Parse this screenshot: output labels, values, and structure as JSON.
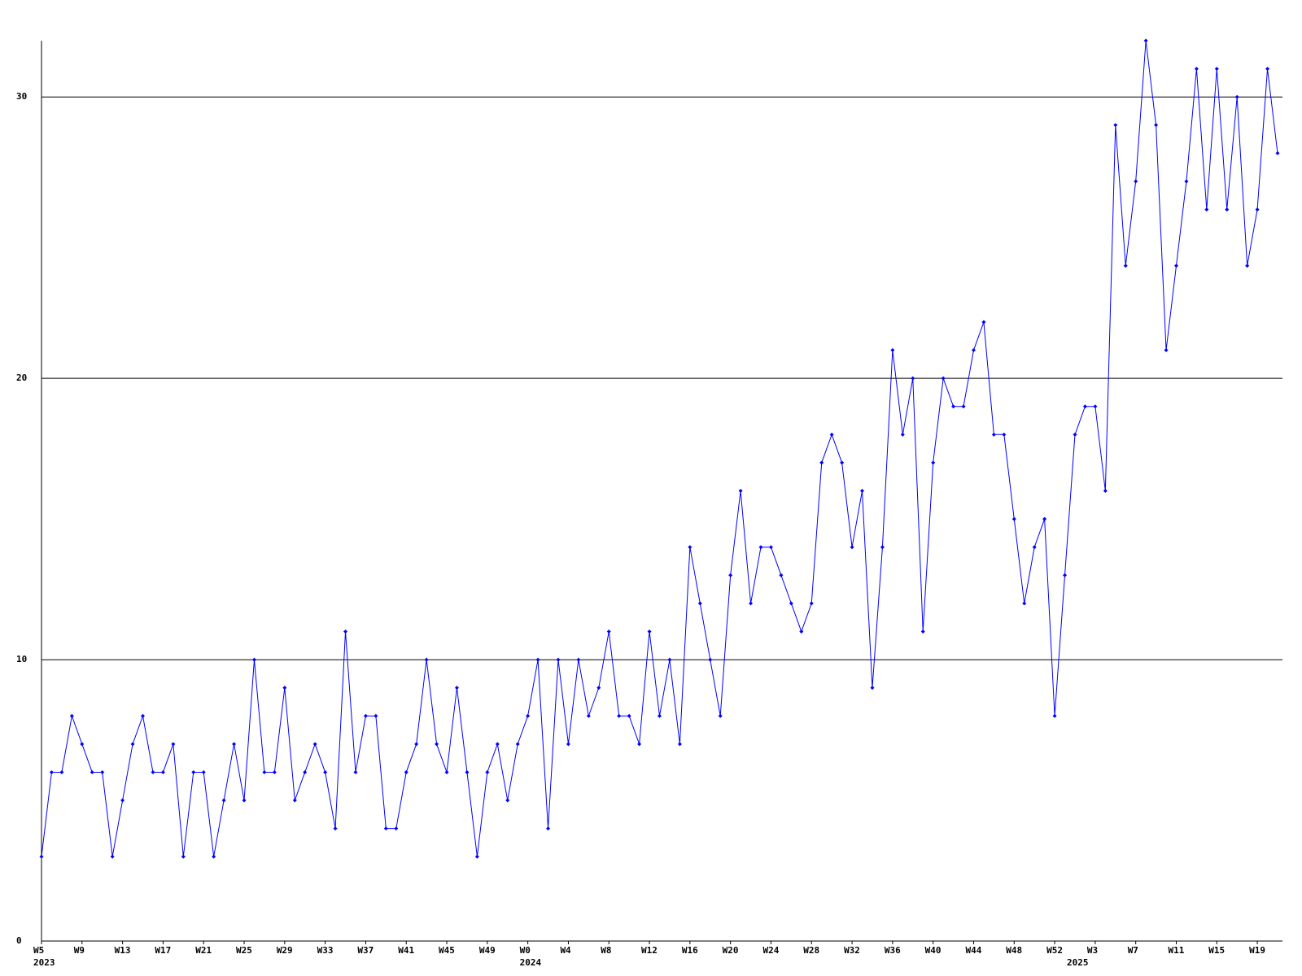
{
  "chart_data": {
    "type": "line",
    "categories": [
      "W5",
      null,
      null,
      null,
      "W9",
      null,
      null,
      null,
      "W13",
      null,
      null,
      null,
      "W17",
      null,
      null,
      null,
      "W21",
      null,
      null,
      null,
      "W25",
      null,
      null,
      null,
      "W29",
      null,
      null,
      null,
      "W33",
      null,
      null,
      null,
      "W37",
      null,
      null,
      null,
      "W41",
      null,
      null,
      null,
      "W45",
      null,
      null,
      null,
      "W49",
      null,
      null,
      null,
      "W0",
      null,
      null,
      null,
      "W4",
      null,
      null,
      null,
      "W8",
      null,
      null,
      null,
      "W12",
      null,
      null,
      null,
      "W16",
      null,
      null,
      null,
      "W20",
      null,
      null,
      null,
      "W24",
      null,
      null,
      null,
      "W28",
      null,
      null,
      null,
      "W32",
      null,
      null,
      null,
      "W36",
      null,
      null,
      null,
      "W40",
      null,
      null,
      null,
      "W44",
      null,
      null,
      null,
      "W48",
      null,
      null,
      null,
      "W52",
      null,
      null,
      null,
      "W3",
      null,
      null,
      null,
      "W7",
      null,
      null,
      null,
      "W11",
      null,
      null,
      null,
      "W15",
      null,
      null,
      null,
      "W19",
      null,
      null
    ],
    "years": [
      "2023",
      null,
      null,
      null,
      null,
      null,
      null,
      null,
      null,
      null,
      null,
      null,
      null,
      null,
      null,
      null,
      null,
      null,
      null,
      null,
      null,
      null,
      null,
      null,
      null,
      null,
      null,
      null,
      null,
      null,
      null,
      null,
      null,
      null,
      null,
      null,
      null,
      null,
      null,
      null,
      null,
      null,
      null,
      null,
      null,
      null,
      null,
      null,
      "2024",
      null,
      null,
      null,
      null,
      null,
      null,
      null,
      null,
      null,
      null,
      null,
      null,
      null,
      null,
      null,
      null,
      null,
      null,
      null,
      null,
      null,
      null,
      null,
      null,
      null,
      null,
      null,
      null,
      null,
      null,
      null,
      null,
      null,
      null,
      null,
      null,
      null,
      null,
      null,
      null,
      null,
      null,
      null,
      null,
      null,
      null,
      null,
      null,
      null,
      null,
      null,
      null,
      null,
      "2025",
      null,
      null,
      null,
      null,
      null,
      null,
      null,
      null,
      null,
      null,
      null,
      null,
      null,
      null,
      null,
      null,
      null,
      null,
      null,
      null
    ],
    "values": [
      3,
      6,
      6,
      8,
      7,
      6,
      6,
      3,
      5,
      7,
      8,
      6,
      6,
      7,
      3,
      6,
      6,
      3,
      5,
      7,
      5,
      10,
      6,
      6,
      9,
      5,
      6,
      7,
      6,
      4,
      11,
      6,
      8,
      8,
      4,
      4,
      6,
      7,
      10,
      7,
      6,
      9,
      6,
      3,
      6,
      7,
      5,
      7,
      8,
      10,
      4,
      10,
      7,
      10,
      8,
      9,
      11,
      8,
      8,
      7,
      11,
      8,
      10,
      7,
      14,
      12,
      10,
      8,
      13,
      16,
      12,
      14,
      14,
      13,
      12,
      11,
      12,
      17,
      18,
      17,
      14,
      16,
      9,
      14,
      21,
      18,
      20,
      11,
      17,
      20,
      19,
      19,
      21,
      22,
      18,
      18,
      15,
      12,
      14,
      15,
      8,
      13,
      18,
      19,
      19,
      16,
      29,
      24,
      27,
      32,
      29,
      21,
      24,
      27,
      31,
      26,
      31,
      26,
      30,
      24,
      26,
      31,
      28
    ],
    "color": "#0000ff",
    "ylim": [
      0,
      32
    ],
    "yticks": [
      0,
      10,
      20,
      30
    ],
    "grid": true
  }
}
